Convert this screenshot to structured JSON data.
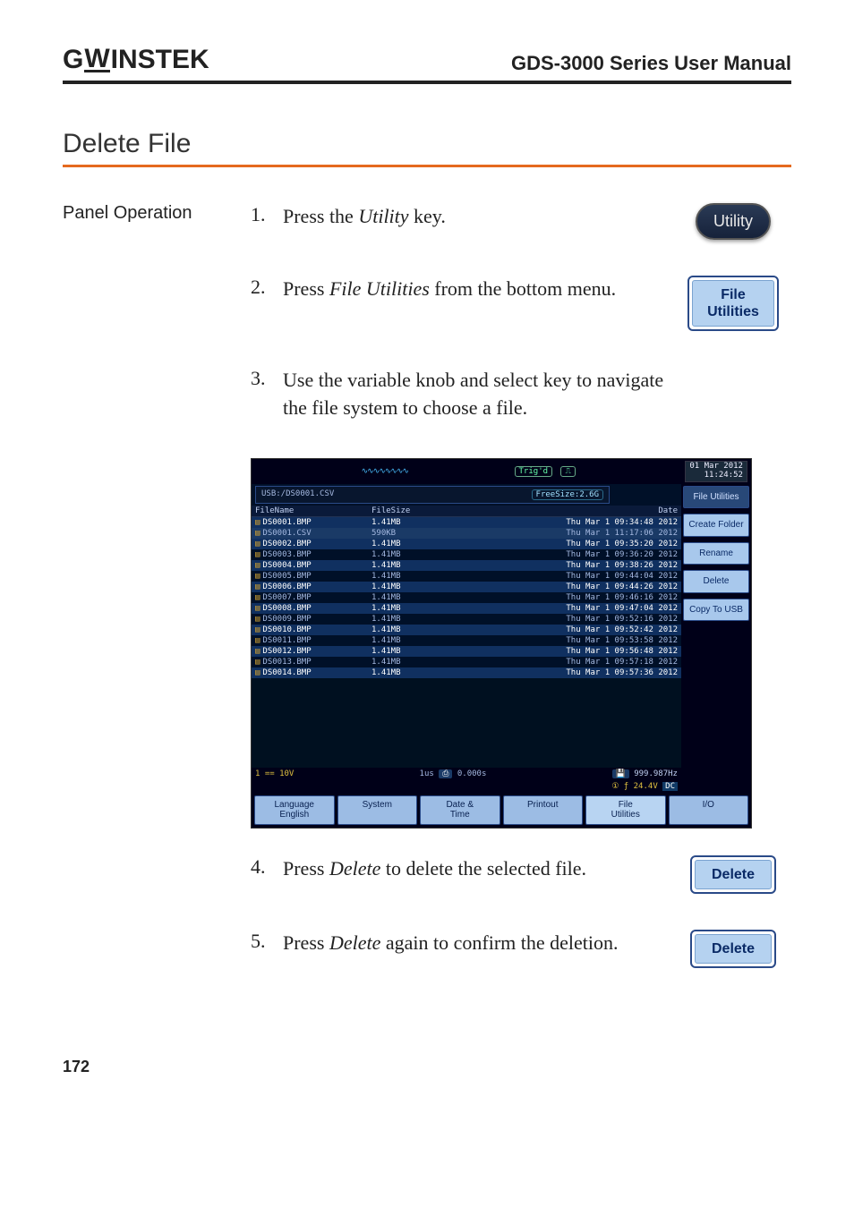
{
  "header": {
    "brand_left": "G",
    "brand_u": "W",
    "brand_right": "INSTEK",
    "manual_title": "GDS-3000 Series User Manual"
  },
  "section_title": "Delete File",
  "panel_op_label": "Panel Operation",
  "steps": [
    {
      "num": "1.",
      "text_pre": "Press the ",
      "italic": "Utility",
      "text_post": " key."
    },
    {
      "num": "2.",
      "text_pre": "Press ",
      "italic": "File Utilities",
      "text_post": " from the bottom menu."
    },
    {
      "num": "3.",
      "text_pre": "Use the variable knob and select key to navigate the file system to choose a file.",
      "italic": "",
      "text_post": ""
    },
    {
      "num": "4.",
      "text_pre": "Press ",
      "italic": "Delete",
      "text_post": " to delete the selected file."
    },
    {
      "num": "5.",
      "text_pre": "Press ",
      "italic": "Delete",
      "text_post": " again to confirm the deletion."
    }
  ],
  "utility_key_label": "Utility",
  "file_util_key_line1": "File",
  "file_util_key_line2": "Utilities",
  "delete_key_label": "Delete",
  "screenshot": {
    "trig_label": "Trig'd",
    "clock_date": "01 Mar 2012",
    "clock_time": "11:24:52",
    "path": "USB:/DS0001.CSV",
    "freesize": "FreeSize:2.6G",
    "side_menu": [
      "File Utilities",
      "Create Folder",
      "Rename",
      "Delete",
      "Copy To USB"
    ],
    "columns": {
      "name": "FileName",
      "size": "FileSize",
      "date": "Date"
    },
    "files": [
      {
        "name": "DS0001.BMP",
        "size": "1.41MB",
        "date": "Thu Mar  1 09:34:48 2012",
        "hl": true
      },
      {
        "name": "DS0001.CSV",
        "size": "590KB",
        "date": "Thu Mar  1 11:17:06 2012",
        "hl": false,
        "sel": true
      },
      {
        "name": "DS0002.BMP",
        "size": "1.41MB",
        "date": "Thu Mar  1 09:35:20 2012",
        "hl": true
      },
      {
        "name": "DS0003.BMP",
        "size": "1.41MB",
        "date": "Thu Mar  1 09:36:20 2012",
        "hl": false
      },
      {
        "name": "DS0004.BMP",
        "size": "1.41MB",
        "date": "Thu Mar  1 09:38:26 2012",
        "hl": true
      },
      {
        "name": "DS0005.BMP",
        "size": "1.41MB",
        "date": "Thu Mar  1 09:44:04 2012",
        "hl": false
      },
      {
        "name": "DS0006.BMP",
        "size": "1.41MB",
        "date": "Thu Mar  1 09:44:26 2012",
        "hl": true
      },
      {
        "name": "DS0007.BMP",
        "size": "1.41MB",
        "date": "Thu Mar  1 09:46:16 2012",
        "hl": false
      },
      {
        "name": "DS0008.BMP",
        "size": "1.41MB",
        "date": "Thu Mar  1 09:47:04 2012",
        "hl": true
      },
      {
        "name": "DS0009.BMP",
        "size": "1.41MB",
        "date": "Thu Mar  1 09:52:16 2012",
        "hl": false
      },
      {
        "name": "DS0010.BMP",
        "size": "1.41MB",
        "date": "Thu Mar  1 09:52:42 2012",
        "hl": true
      },
      {
        "name": "DS0011.BMP",
        "size": "1.41MB",
        "date": "Thu Mar  1 09:53:58 2012",
        "hl": false
      },
      {
        "name": "DS0012.BMP",
        "size": "1.41MB",
        "date": "Thu Mar  1 09:56:48 2012",
        "hl": true
      },
      {
        "name": "DS0013.BMP",
        "size": "1.41MB",
        "date": "Thu Mar  1 09:57:18 2012",
        "hl": false
      },
      {
        "name": "DS0014.BMP",
        "size": "1.41MB",
        "date": "Thu Mar  1 09:57:36 2012",
        "hl": true
      }
    ],
    "bottom_status": {
      "time": "1us",
      "pos": "0.000s",
      "freq": "999.987Hz",
      "volt": "24.4V",
      "coupling": "DC"
    },
    "bottom_menu": [
      {
        "l1": "Language",
        "l2": "English"
      },
      {
        "l1": "System",
        "l2": ""
      },
      {
        "l1": "Date &",
        "l2": "Time"
      },
      {
        "l1": "Printout",
        "l2": ""
      },
      {
        "l1": "File",
        "l2": "Utilities"
      },
      {
        "l1": "I/O",
        "l2": ""
      }
    ]
  },
  "page_number": "172",
  "colors": {
    "rule_orange": "#e56a1f",
    "softkey_bg": "#b5d2f0",
    "softkey_border": "#2a4a88"
  }
}
